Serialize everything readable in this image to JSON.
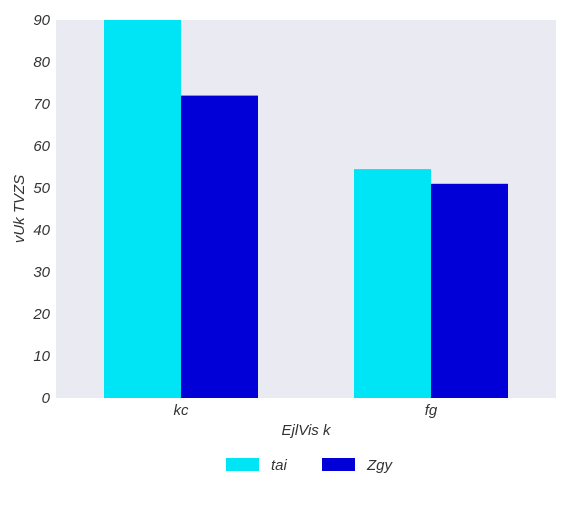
{
  "chart_data": {
    "type": "bar",
    "title": "",
    "xlabel": "EjlVis k",
    "ylabel": "vUk TVZS",
    "categories": [
      "kc",
      "fg"
    ],
    "series": [
      {
        "name": "tai",
        "values": [
          90,
          54.5
        ],
        "color": "#00e5f5"
      },
      {
        "name": "Zgy",
        "values": [
          72,
          51
        ],
        "color": "#0000d7"
      }
    ],
    "ylim": [
      0,
      90
    ],
    "yticks": [
      0,
      10,
      20,
      30,
      40,
      50,
      60,
      70,
      80,
      90
    ],
    "grid": false,
    "legend_position": "bottom-center",
    "background": "#eaeaf2"
  }
}
